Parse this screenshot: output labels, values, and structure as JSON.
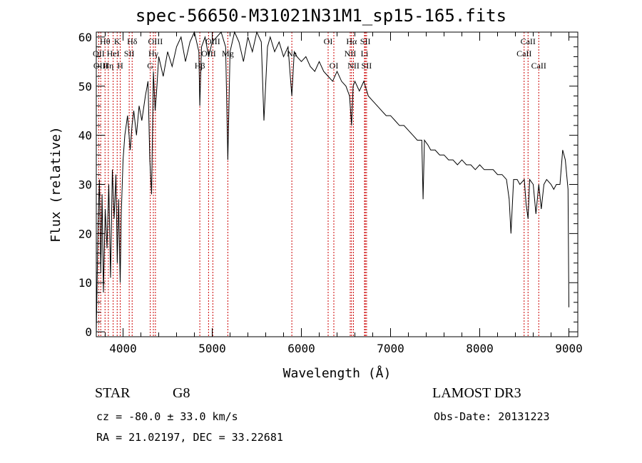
{
  "chart_data": {
    "type": "line",
    "title": "spec-56650-M31021N31M1_sp15-165.fits",
    "xlabel": "Wavelength (Å)",
    "ylabel": "Flux (relative)",
    "xlim": [
      3700,
      9100
    ],
    "ylim": [
      -1,
      61
    ],
    "x_ticks": [
      4000,
      5000,
      6000,
      7000,
      8000,
      9000
    ],
    "x_tick_labels": [
      "4000",
      "5000",
      "6000",
      "7000",
      "8000",
      "9000"
    ],
    "y_ticks": [
      0,
      10,
      20,
      30,
      40,
      50,
      60
    ],
    "y_tick_labels": [
      "0",
      "10",
      "20",
      "30",
      "40",
      "50",
      "60"
    ],
    "line_color": "#000000",
    "marker_color": "#cc0000",
    "spectrum": {
      "x": [
        3700,
        3720,
        3735,
        3750,
        3765,
        3780,
        3800,
        3820,
        3840,
        3860,
        3880,
        3900,
        3920,
        3935,
        3950,
        3968,
        3980,
        4000,
        4020,
        4050,
        4080,
        4101,
        4120,
        4150,
        4180,
        4210,
        4250,
        4280,
        4300,
        4320,
        4340,
        4360,
        4380,
        4400,
        4450,
        4500,
        4550,
        4600,
        4650,
        4700,
        4750,
        4800,
        4850,
        4861,
        4880,
        4920,
        4960,
        5000,
        5050,
        5100,
        5150,
        5175,
        5200,
        5250,
        5300,
        5350,
        5400,
        5450,
        5500,
        5550,
        5580,
        5620,
        5650,
        5700,
        5750,
        5800,
        5850,
        5893,
        5920,
        5950,
        6000,
        6050,
        6100,
        6150,
        6200,
        6250,
        6300,
        6350,
        6400,
        6450,
        6500,
        6540,
        6563,
        6580,
        6600,
        6650,
        6700,
        6750,
        6800,
        6850,
        6900,
        6950,
        7000,
        7050,
        7100,
        7150,
        7200,
        7250,
        7300,
        7350,
        7365,
        7380,
        7420,
        7450,
        7500,
        7550,
        7600,
        7650,
        7700,
        7750,
        7800,
        7850,
        7900,
        7950,
        8000,
        8050,
        8100,
        8150,
        8200,
        8250,
        8300,
        8330,
        8350,
        8380,
        8420,
        8450,
        8500,
        8520,
        8542,
        8560,
        8600,
        8630,
        8662,
        8690,
        8720,
        8750,
        8800,
        8830,
        8860,
        8900,
        8930,
        8960,
        8990,
        9000
      ],
      "y": [
        0,
        22,
        31,
        12,
        28,
        8,
        25,
        17,
        30,
        11,
        33,
        23,
        32,
        14,
        27,
        10,
        24,
        35,
        40,
        44,
        37,
        42,
        45,
        40,
        46,
        43,
        48,
        51,
        35,
        28,
        53,
        45,
        50,
        56,
        52,
        57,
        54,
        58,
        60,
        55,
        59,
        61,
        57,
        46,
        58,
        60,
        56,
        59,
        60,
        62,
        58,
        35,
        57,
        62,
        59,
        55,
        60,
        57,
        61,
        59,
        43,
        58,
        60,
        57,
        59,
        56,
        58,
        48,
        57,
        56,
        55,
        56,
        54,
        53,
        55,
        53,
        52,
        51,
        53,
        51,
        50,
        48,
        42,
        50,
        51,
        49,
        51,
        48,
        47,
        46,
        45,
        44,
        44,
        43,
        42,
        42,
        41,
        40,
        39,
        39,
        27,
        39,
        38,
        37,
        37,
        36,
        36,
        35,
        35,
        34,
        35,
        34,
        34,
        33,
        34,
        33,
        33,
        33,
        32,
        32,
        31,
        27,
        20,
        31,
        31,
        30,
        31,
        26,
        23,
        31,
        30,
        24,
        30,
        25,
        30,
        31,
        30,
        29,
        30,
        30,
        37,
        35,
        29,
        5
      ]
    },
    "lines": [
      {
        "label": "Hθ",
        "x": 3798,
        "row": 1
      },
      {
        "label": "OII",
        "x": 3727,
        "row": 2
      },
      {
        "label": "OIII",
        "x": 3750,
        "row": 3
      },
      {
        "label": "K",
        "x": 3934,
        "row": 1
      },
      {
        "label": "HeI",
        "x": 3889,
        "row": 2
      },
      {
        "label": "Hη",
        "x": 3835,
        "row": 3
      },
      {
        "label": "SII",
        "x": 4069,
        "row": 2
      },
      {
        "label": "H",
        "x": 3968,
        "row": 3
      },
      {
        "label": "Hδ",
        "x": 4102,
        "row": 1
      },
      {
        "label": "OIII",
        "x": 4363,
        "row": 1
      },
      {
        "label": "Hγ",
        "x": 4340,
        "row": 2
      },
      {
        "label": "G",
        "x": 4305,
        "row": 3
      },
      {
        "label": "OIII",
        "x": 5007,
        "row": 1
      },
      {
        "label": "OIII",
        "x": 4959,
        "row": 2
      },
      {
        "label": "Hβ",
        "x": 4861,
        "row": 3
      },
      {
        "label": "Mg",
        "x": 5175,
        "row": 2
      },
      {
        "label": "Na",
        "x": 5893,
        "row": 2
      },
      {
        "label": "OI",
        "x": 6300,
        "row": 1
      },
      {
        "label": "OI",
        "x": 6364,
        "row": 3
      },
      {
        "label": "Hα",
        "x": 6563,
        "row": 1
      },
      {
        "label": "NII",
        "x": 6548,
        "row": 2
      },
      {
        "label": "NII",
        "x": 6584,
        "row": 3
      },
      {
        "label": "SII",
        "x": 6717,
        "row": 1
      },
      {
        "label": "Li",
        "x": 6708,
        "row": 2
      },
      {
        "label": "SII",
        "x": 6731,
        "row": 3
      },
      {
        "label": "CaII",
        "x": 8542,
        "row": 1
      },
      {
        "label": "CaII",
        "x": 8498,
        "row": 2
      },
      {
        "label": "CaII",
        "x": 8662,
        "row": 3
      }
    ]
  },
  "info": {
    "class_label": "STAR",
    "subclass": "G8",
    "survey": "LAMOST DR3",
    "redshift": "cz = -80.0 ± 33.0 km/s",
    "obs_date": "Obs-Date: 20131223",
    "coords": "RA =  21.02197, DEC =  33.22681"
  }
}
